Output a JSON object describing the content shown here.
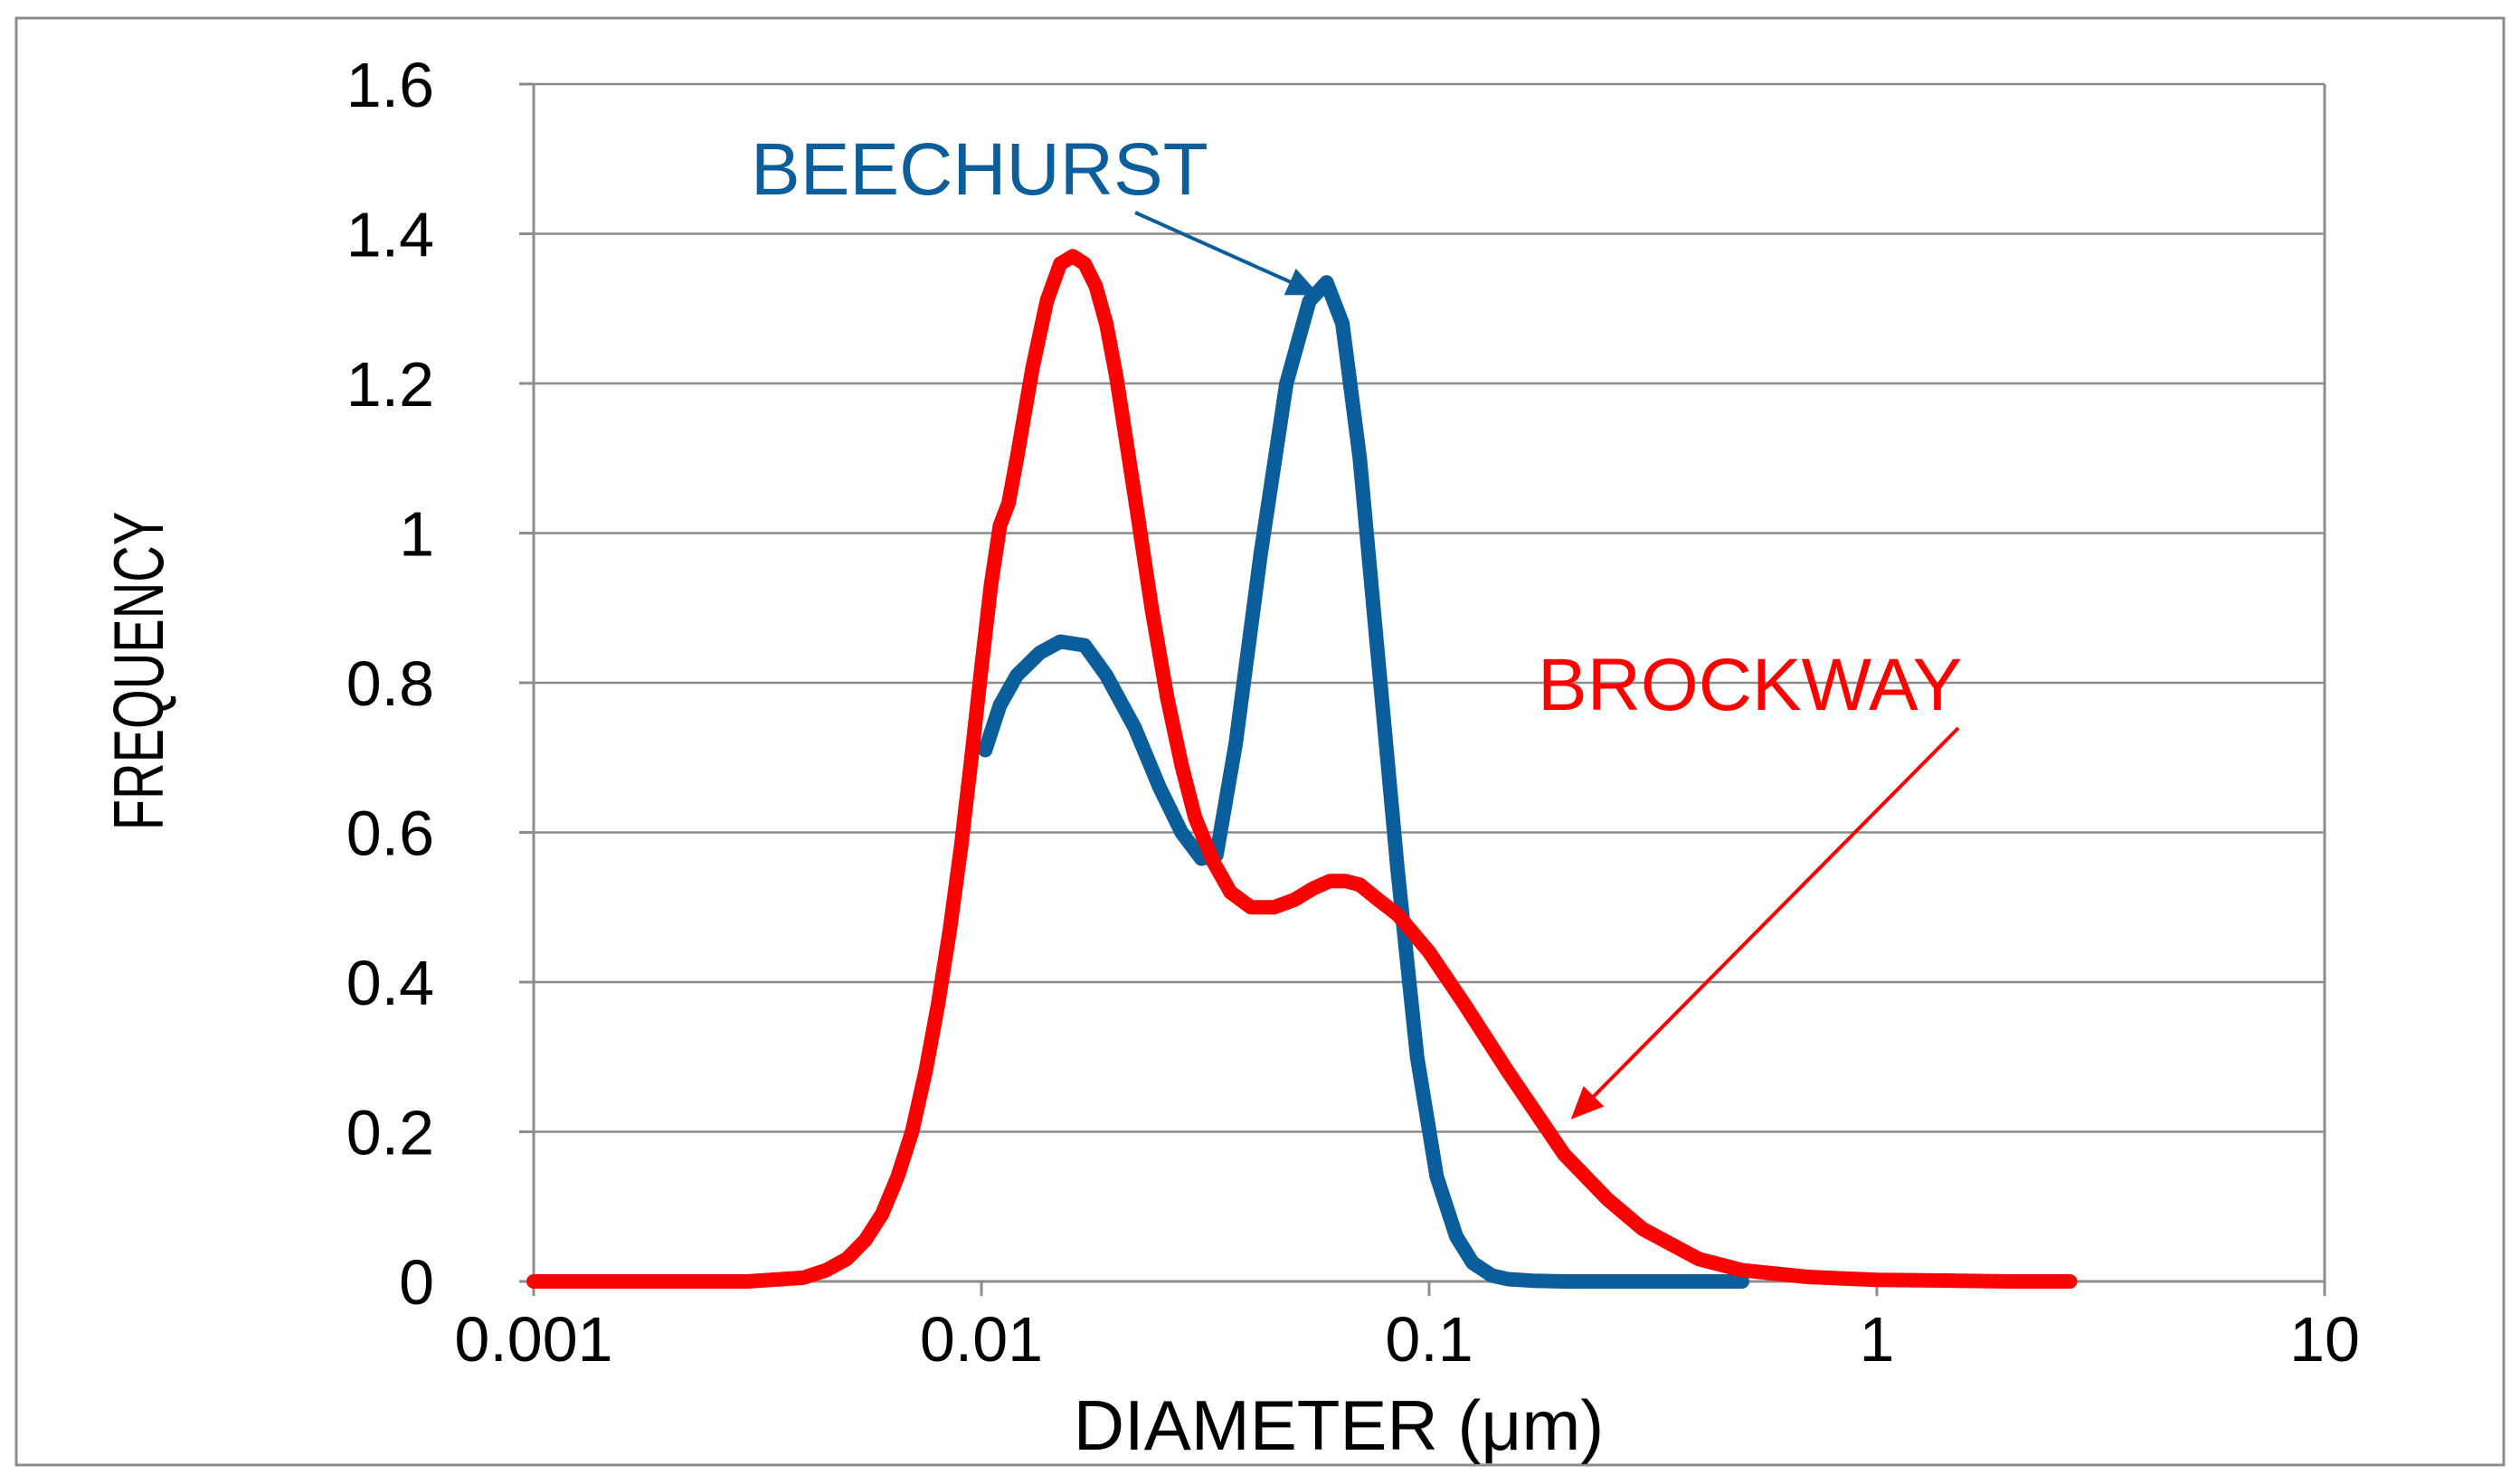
{
  "chart_data": {
    "type": "line",
    "title": "",
    "xlabel": "DIAMETER (μm)",
    "ylabel": "FREQUENCY",
    "x_scale": "log",
    "xlim": [
      0.001,
      10
    ],
    "ylim": [
      0,
      1.6
    ],
    "x_ticks": [
      0.001,
      0.01,
      0.1,
      1,
      10
    ],
    "x_tick_labels": [
      "0.001",
      "0.01",
      "0.1",
      "1",
      "10"
    ],
    "y_ticks": [
      0,
      0.2,
      0.4,
      0.6,
      0.8,
      1,
      1.2,
      1.4,
      1.6
    ],
    "y_tick_labels": [
      "0",
      "0.2",
      "0.4",
      "0.6",
      "0.8",
      "1",
      "1.2",
      "1.4",
      "1.6"
    ],
    "grid": "horizontal",
    "legend": "none",
    "series": [
      {
        "name": "BEECHURST",
        "color": "#0b5e9c",
        "x": [
          0.0102,
          0.011,
          0.012,
          0.0135,
          0.015,
          0.017,
          0.019,
          0.022,
          0.025,
          0.028,
          0.031,
          0.0335,
          0.037,
          0.042,
          0.048,
          0.054,
          0.059,
          0.064,
          0.07,
          0.077,
          0.085,
          0.094,
          0.104,
          0.115,
          0.125,
          0.138,
          0.15,
          0.17,
          0.2,
          0.3,
          0.5
        ],
        "y": [
          0.71,
          0.77,
          0.81,
          0.84,
          0.855,
          0.85,
          0.81,
          0.74,
          0.66,
          0.6,
          0.565,
          0.57,
          0.72,
          0.97,
          1.2,
          1.31,
          1.335,
          1.28,
          1.1,
          0.83,
          0.55,
          0.3,
          0.14,
          0.06,
          0.025,
          0.008,
          0.003,
          0.001,
          0,
          0,
          0
        ]
      },
      {
        "name": "BROCKWAY",
        "color": "#ff0000",
        "x": [
          0.001,
          0.002,
          0.003,
          0.004,
          0.0045,
          0.005,
          0.0055,
          0.006,
          0.0065,
          0.007,
          0.0075,
          0.008,
          0.0085,
          0.009,
          0.0095,
          0.01,
          0.0105,
          0.011,
          0.0115,
          0.012,
          0.013,
          0.014,
          0.015,
          0.016,
          0.017,
          0.018,
          0.019,
          0.02,
          0.022,
          0.024,
          0.026,
          0.028,
          0.03,
          0.033,
          0.036,
          0.04,
          0.045,
          0.05,
          0.055,
          0.06,
          0.065,
          0.07,
          0.077,
          0.085,
          0.1,
          0.12,
          0.15,
          0.2,
          0.25,
          0.3,
          0.4,
          0.5,
          0.7,
          1,
          1.5,
          2,
          2.7
        ],
        "y": [
          0,
          0,
          0,
          0.005,
          0.015,
          0.03,
          0.055,
          0.09,
          0.14,
          0.2,
          0.28,
          0.37,
          0.47,
          0.58,
          0.7,
          0.82,
          0.93,
          1.01,
          1.04,
          1.1,
          1.22,
          1.31,
          1.36,
          1.37,
          1.36,
          1.33,
          1.28,
          1.21,
          1.05,
          0.9,
          0.78,
          0.69,
          0.62,
          0.56,
          0.52,
          0.5,
          0.5,
          0.51,
          0.525,
          0.535,
          0.535,
          0.53,
          0.51,
          0.49,
          0.44,
          0.37,
          0.28,
          0.17,
          0.11,
          0.07,
          0.03,
          0.015,
          0.006,
          0.002,
          0.001,
          0,
          0
        ]
      }
    ],
    "annotations": [
      {
        "text": "BEECHURST",
        "color": "#0b5e9c",
        "points_to": {
          "x": 0.056,
          "y": 1.32
        }
      },
      {
        "text": "BROCKWAY",
        "color": "#ff0000",
        "points_to": {
          "x": 0.21,
          "y": 0.22
        }
      }
    ]
  }
}
